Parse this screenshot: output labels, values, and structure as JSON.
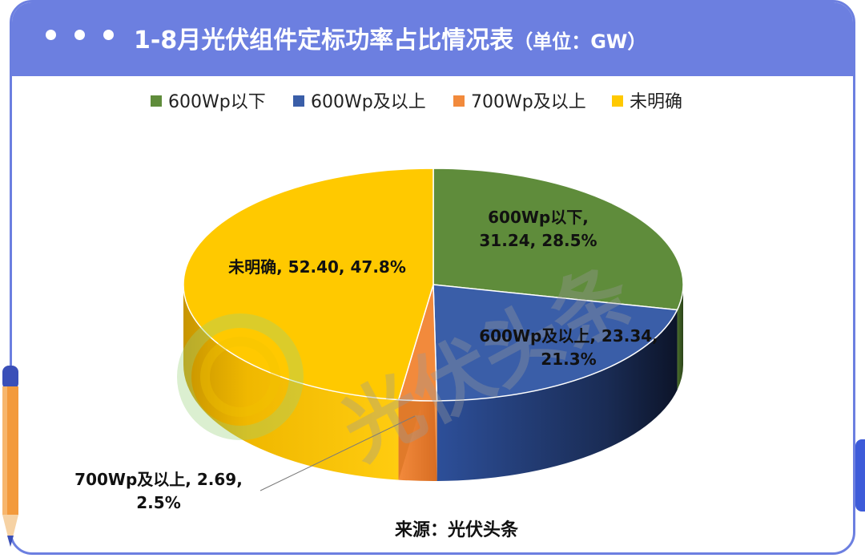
{
  "header": {
    "title": "1-8月光伏组件定标功率占比情况表",
    "unit": "（单位：GW）"
  },
  "chart_data": {
    "type": "pie",
    "unit": "GW",
    "slices": [
      {
        "name": "600Wp以下",
        "value": 31.24,
        "percent": "28.5%",
        "label_lines": [
          "600Wp以下,",
          "31.24, 28.5%"
        ],
        "color": "#5f8c3b"
      },
      {
        "name": "600Wp及以上",
        "value": 23.34,
        "percent": "21.3%",
        "label_lines": [
          "600Wp及以上, 23.34,",
          "21.3%"
        ],
        "color": "#3a5ea8"
      },
      {
        "name": "700Wp及以上",
        "value": 2.69,
        "percent": "2.5%",
        "label_lines": [
          "700Wp及以上, 2.69,",
          "2.5%"
        ],
        "color": "#f28a3c"
      },
      {
        "name": "未明确",
        "value": 52.4,
        "percent": "47.8%",
        "label_lines": [
          "未明确, 52.40, 47.8%"
        ],
        "color": "#ffc900"
      }
    ],
    "legend_position": "top"
  },
  "source": "来源：光伏头条",
  "watermark": "光伏头条"
}
